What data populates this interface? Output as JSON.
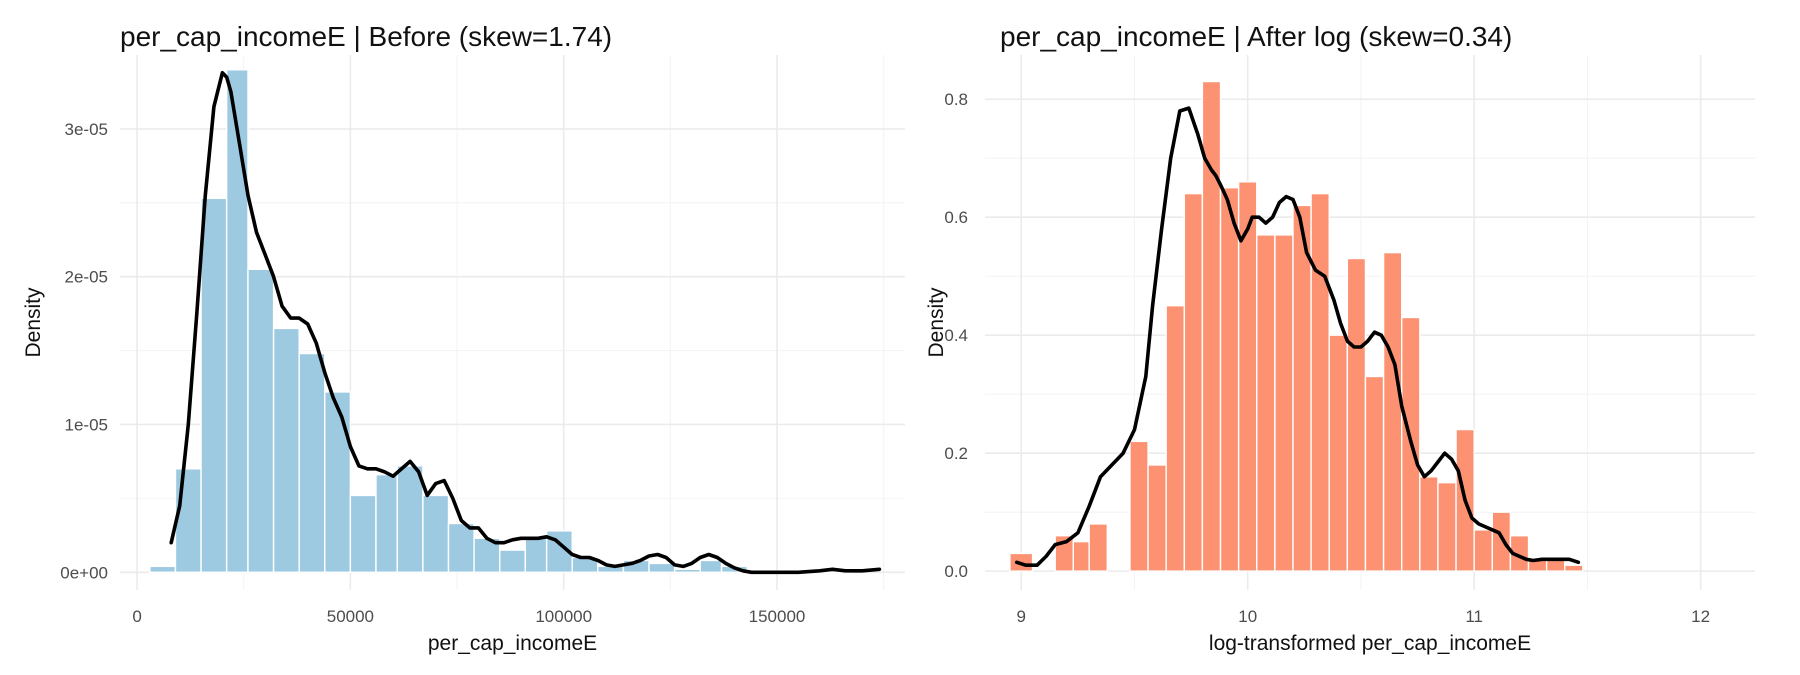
{
  "chart_data": [
    {
      "type": "bar",
      "title": "per_cap_incomeE | Before (skew=1.74)",
      "xlabel": "per_cap_incomeE",
      "ylabel": "Density",
      "xlim": [
        -4000,
        180000
      ],
      "ylim": [
        -1.2e-06,
        3.5e-05
      ],
      "x_ticks": [
        0,
        50000,
        100000,
        150000
      ],
      "x_tick_labels": [
        "0",
        "50000",
        "100000",
        "150000"
      ],
      "y_ticks": [
        0,
        1e-05,
        2e-05,
        3e-05
      ],
      "y_tick_labels": [
        "0e+00",
        "1e-05",
        "2e-05",
        "3e-05"
      ],
      "grid": true,
      "bar_color": "#9ecae1",
      "line_color": "#000000",
      "bins": [
        {
          "x0": 3000,
          "x1": 9000,
          "y": 4e-07
        },
        {
          "x0": 9000,
          "x1": 15000,
          "y": 7e-06
        },
        {
          "x0": 15000,
          "x1": 21000,
          "y": 2.53e-05
        },
        {
          "x0": 21000,
          "x1": 26000,
          "y": 3.4e-05
        },
        {
          "x0": 26000,
          "x1": 32000,
          "y": 2.05e-05
        },
        {
          "x0": 32000,
          "x1": 38000,
          "y": 1.65e-05
        },
        {
          "x0": 38000,
          "x1": 44000,
          "y": 1.48e-05
        },
        {
          "x0": 44000,
          "x1": 50000,
          "y": 1.22e-05
        },
        {
          "x0": 50000,
          "x1": 56000,
          "y": 5.2e-06
        },
        {
          "x0": 56000,
          "x1": 61000,
          "y": 6.6e-06
        },
        {
          "x0": 61000,
          "x1": 67000,
          "y": 7.2e-06
        },
        {
          "x0": 67000,
          "x1": 73000,
          "y": 5.2e-06
        },
        {
          "x0": 73000,
          "x1": 79000,
          "y": 3.3e-06
        },
        {
          "x0": 79000,
          "x1": 85000,
          "y": 2.3e-06
        },
        {
          "x0": 85000,
          "x1": 91000,
          "y": 1.5e-06
        },
        {
          "x0": 91000,
          "x1": 96000,
          "y": 2.4e-06
        },
        {
          "x0": 96000,
          "x1": 102000,
          "y": 2.8e-06
        },
        {
          "x0": 102000,
          "x1": 108000,
          "y": 1e-06
        },
        {
          "x0": 108000,
          "x1": 114000,
          "y": 4e-07
        },
        {
          "x0": 114000,
          "x1": 120000,
          "y": 8e-07
        },
        {
          "x0": 120000,
          "x1": 126000,
          "y": 6e-07
        },
        {
          "x0": 126000,
          "x1": 132000,
          "y": 2e-07
        },
        {
          "x0": 132000,
          "x1": 137000,
          "y": 8e-07
        },
        {
          "x0": 137000,
          "x1": 143000,
          "y": 4e-07
        },
        {
          "x0": 143000,
          "x1": 149000,
          "y": 1e-07
        },
        {
          "x0": 155000,
          "x1": 161000,
          "y": 1e-07
        },
        {
          "x0": 161000,
          "x1": 167000,
          "y": 2e-07
        }
      ],
      "density": {
        "x": [
          8000,
          10000,
          12000,
          14000,
          16000,
          18000,
          20000,
          21000,
          22000,
          24000,
          26000,
          28000,
          30000,
          32000,
          34000,
          36000,
          38000,
          40000,
          42000,
          44000,
          46000,
          48000,
          50000,
          52000,
          54000,
          56000,
          58000,
          60000,
          62000,
          64000,
          66000,
          68000,
          70000,
          72000,
          74000,
          76000,
          78000,
          80000,
          82000,
          84000,
          86000,
          88000,
          90000,
          92000,
          94000,
          96000,
          98000,
          100000,
          102000,
          104000,
          106000,
          108000,
          110000,
          112000,
          114000,
          116000,
          118000,
          120000,
          122000,
          124000,
          126000,
          128000,
          130000,
          132000,
          134000,
          136000,
          138000,
          140000,
          142000,
          144000,
          146000,
          148000,
          150000,
          155000,
          160000,
          163000,
          166000,
          170000,
          174000
        ],
        "y": [
          2e-06,
          4.5e-06,
          1e-05,
          1.75e-05,
          2.55e-05,
          3.15e-05,
          3.38e-05,
          3.35e-05,
          3.25e-05,
          2.9e-05,
          2.55e-05,
          2.3e-05,
          2.15e-05,
          2e-05,
          1.8e-05,
          1.72e-05,
          1.72e-05,
          1.68e-05,
          1.55e-05,
          1.35e-05,
          1.18e-05,
          1.05e-05,
          8.5e-06,
          7.2e-06,
          7e-06,
          7e-06,
          6.8e-06,
          6.5e-06,
          7e-06,
          7.5e-06,
          6.8e-06,
          5.2e-06,
          6e-06,
          6.2e-06,
          5e-06,
          3.5e-06,
          3e-06,
          3e-06,
          2.3e-06,
          2e-06,
          2e-06,
          2.2e-06,
          2.3e-06,
          2.3e-06,
          2.3e-06,
          2.4e-06,
          2.2e-06,
          1.7e-06,
          1.2e-06,
          1e-06,
          1e-06,
          8e-07,
          5e-07,
          4e-07,
          5e-07,
          6e-07,
          8e-07,
          1.1e-06,
          1.2e-06,
          1e-06,
          5e-07,
          4e-07,
          6e-07,
          1e-06,
          1.2e-06,
          1e-06,
          6e-07,
          3e-07,
          1e-07,
          0.0,
          0.0,
          0.0,
          0.0,
          0.0,
          1e-07,
          2e-07,
          1e-07,
          1e-07,
          2e-07
        ]
      }
    },
    {
      "type": "bar",
      "title": "per_cap_incomeE | After log (skew=0.34)",
      "xlabel": "log-transformed per_cap_incomeE",
      "ylabel": "Density",
      "xlim": [
        8.84,
        12.24
      ],
      "ylim": [
        -0.032,
        0.875
      ],
      "x_ticks": [
        9,
        10,
        11,
        12
      ],
      "x_tick_labels": [
        "9",
        "10",
        "11",
        "12"
      ],
      "y_ticks": [
        0.0,
        0.2,
        0.4,
        0.6,
        0.8
      ],
      "y_tick_labels": [
        "0.0",
        "0.2",
        "0.4",
        "0.6",
        "0.8"
      ],
      "grid": true,
      "bar_color": "#fc9272",
      "line_color": "#000000",
      "bins": [
        {
          "x0": 8.95,
          "x1": 9.05,
          "y": 0.03
        },
        {
          "x0": 9.15,
          "x1": 9.23,
          "y": 0.06
        },
        {
          "x0": 9.23,
          "x1": 9.3,
          "y": 0.05
        },
        {
          "x0": 9.3,
          "x1": 9.38,
          "y": 0.08
        },
        {
          "x0": 9.48,
          "x1": 9.56,
          "y": 0.22
        },
        {
          "x0": 9.56,
          "x1": 9.64,
          "y": 0.18
        },
        {
          "x0": 9.64,
          "x1": 9.72,
          "y": 0.45
        },
        {
          "x0": 9.72,
          "x1": 9.8,
          "y": 0.64
        },
        {
          "x0": 9.8,
          "x1": 9.88,
          "y": 0.83
        },
        {
          "x0": 9.88,
          "x1": 9.96,
          "y": 0.65
        },
        {
          "x0": 9.96,
          "x1": 10.04,
          "y": 0.66
        },
        {
          "x0": 10.04,
          "x1": 10.12,
          "y": 0.57
        },
        {
          "x0": 10.12,
          "x1": 10.2,
          "y": 0.57
        },
        {
          "x0": 10.2,
          "x1": 10.28,
          "y": 0.62
        },
        {
          "x0": 10.28,
          "x1": 10.36,
          "y": 0.64
        },
        {
          "x0": 10.36,
          "x1": 10.44,
          "y": 0.4
        },
        {
          "x0": 10.44,
          "x1": 10.52,
          "y": 0.53
        },
        {
          "x0": 10.52,
          "x1": 10.6,
          "y": 0.33
        },
        {
          "x0": 10.6,
          "x1": 10.68,
          "y": 0.54
        },
        {
          "x0": 10.68,
          "x1": 10.76,
          "y": 0.43
        },
        {
          "x0": 10.76,
          "x1": 10.84,
          "y": 0.16
        },
        {
          "x0": 10.84,
          "x1": 10.92,
          "y": 0.15
        },
        {
          "x0": 10.92,
          "x1": 11.0,
          "y": 0.24
        },
        {
          "x0": 11.0,
          "x1": 11.08,
          "y": 0.07
        },
        {
          "x0": 11.08,
          "x1": 11.16,
          "y": 0.1
        },
        {
          "x0": 11.16,
          "x1": 11.24,
          "y": 0.06
        },
        {
          "x0": 11.24,
          "x1": 11.32,
          "y": 0.02
        },
        {
          "x0": 11.32,
          "x1": 11.4,
          "y": 0.02
        },
        {
          "x0": 11.4,
          "x1": 11.48,
          "y": 0.01
        }
      ],
      "density": {
        "x": [
          8.98,
          9.02,
          9.07,
          9.11,
          9.15,
          9.2,
          9.25,
          9.3,
          9.35,
          9.4,
          9.45,
          9.5,
          9.55,
          9.58,
          9.62,
          9.66,
          9.7,
          9.74,
          9.78,
          9.81,
          9.84,
          9.86,
          9.88,
          9.91,
          9.94,
          9.97,
          10.0,
          10.02,
          10.05,
          10.08,
          10.11,
          10.14,
          10.17,
          10.2,
          10.23,
          10.26,
          10.3,
          10.34,
          10.38,
          10.41,
          10.44,
          10.47,
          10.5,
          10.53,
          10.56,
          10.59,
          10.62,
          10.65,
          10.68,
          10.72,
          10.75,
          10.78,
          10.81,
          10.84,
          10.87,
          10.9,
          10.93,
          10.96,
          10.99,
          11.02,
          11.05,
          11.08,
          11.11,
          11.14,
          11.17,
          11.2,
          11.23,
          11.26,
          11.3,
          11.34,
          11.38,
          11.42,
          11.46
        ],
        "y": [
          0.015,
          0.01,
          0.01,
          0.025,
          0.045,
          0.05,
          0.065,
          0.11,
          0.16,
          0.18,
          0.2,
          0.24,
          0.33,
          0.45,
          0.58,
          0.7,
          0.78,
          0.785,
          0.74,
          0.7,
          0.68,
          0.67,
          0.655,
          0.63,
          0.59,
          0.56,
          0.58,
          0.6,
          0.6,
          0.59,
          0.6,
          0.625,
          0.635,
          0.63,
          0.6,
          0.54,
          0.51,
          0.5,
          0.46,
          0.42,
          0.39,
          0.38,
          0.38,
          0.39,
          0.405,
          0.4,
          0.38,
          0.35,
          0.28,
          0.22,
          0.18,
          0.16,
          0.17,
          0.185,
          0.2,
          0.19,
          0.17,
          0.12,
          0.09,
          0.08,
          0.075,
          0.07,
          0.065,
          0.045,
          0.03,
          0.025,
          0.02,
          0.018,
          0.02,
          0.02,
          0.02,
          0.02,
          0.015
        ]
      }
    }
  ]
}
